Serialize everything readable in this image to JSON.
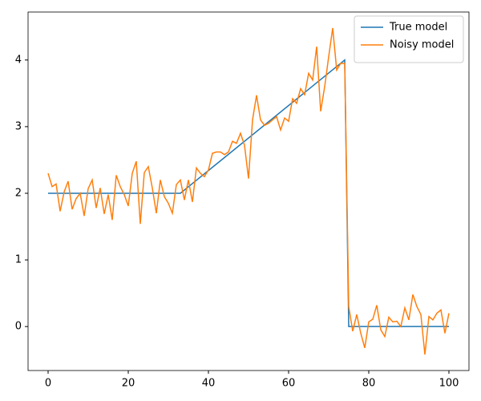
{
  "chart_data": {
    "type": "line",
    "x": [
      0,
      1,
      2,
      3,
      4,
      5,
      6,
      7,
      8,
      9,
      10,
      11,
      12,
      13,
      14,
      15,
      16,
      17,
      18,
      19,
      20,
      21,
      22,
      23,
      24,
      25,
      26,
      27,
      28,
      29,
      30,
      31,
      32,
      33,
      34,
      35,
      36,
      37,
      38,
      39,
      40,
      41,
      42,
      43,
      44,
      45,
      46,
      47,
      48,
      49,
      50,
      51,
      52,
      53,
      54,
      55,
      56,
      57,
      58,
      59,
      60,
      61,
      62,
      63,
      64,
      65,
      66,
      67,
      68,
      69,
      70,
      71,
      72,
      73,
      74,
      75,
      76,
      77,
      78,
      79,
      80,
      81,
      82,
      83,
      84,
      85,
      86,
      87,
      88,
      89,
      90,
      91,
      92,
      93,
      94,
      95,
      96,
      97,
      98,
      99,
      100
    ],
    "series": [
      {
        "name": "True model",
        "color": "#1f77b4",
        "x": [
          0,
          33,
          74,
          75,
          100
        ],
        "values": [
          2,
          2,
          4,
          0,
          0
        ]
      },
      {
        "name": "Noisy model",
        "color": "#ff7f0e",
        "values": [
          2.3,
          2.1,
          2.14,
          1.73,
          2.02,
          2.18,
          1.76,
          1.92,
          2.0,
          1.66,
          2.07,
          2.2,
          1.78,
          2.08,
          1.69,
          1.98,
          1.6,
          2.27,
          2.1,
          1.98,
          1.81,
          2.3,
          2.48,
          1.54,
          2.31,
          2.4,
          2.08,
          1.7,
          2.2,
          1.95,
          1.85,
          1.7,
          2.13,
          2.2,
          1.9,
          2.2,
          1.87,
          2.38,
          2.3,
          2.25,
          2.35,
          2.6,
          2.62,
          2.62,
          2.58,
          2.62,
          2.78,
          2.75,
          2.9,
          2.72,
          2.22,
          3.1,
          3.47,
          3.1,
          3.02,
          3.05,
          3.1,
          3.15,
          2.95,
          3.13,
          3.08,
          3.42,
          3.35,
          3.57,
          3.48,
          3.8,
          3.7,
          4.2,
          3.23,
          3.6,
          4.05,
          4.48,
          3.85,
          3.95,
          3.95,
          0.3,
          -0.07,
          0.18,
          -0.1,
          -0.32,
          0.07,
          0.11,
          0.32,
          -0.05,
          -0.15,
          0.14,
          0.07,
          0.08,
          0.0,
          0.28,
          0.1,
          0.48,
          0.3,
          0.18,
          -0.42,
          0.15,
          0.1,
          0.2,
          0.25,
          -0.1,
          0.2
        ]
      }
    ],
    "xlim": [
      -5,
      105
    ],
    "ylim": [
      -0.66,
      4.72
    ],
    "xticks": [
      0,
      20,
      40,
      60,
      80,
      100
    ],
    "yticks": [
      0,
      1,
      2,
      3,
      4
    ],
    "grid": false,
    "legend": "upper-right"
  }
}
